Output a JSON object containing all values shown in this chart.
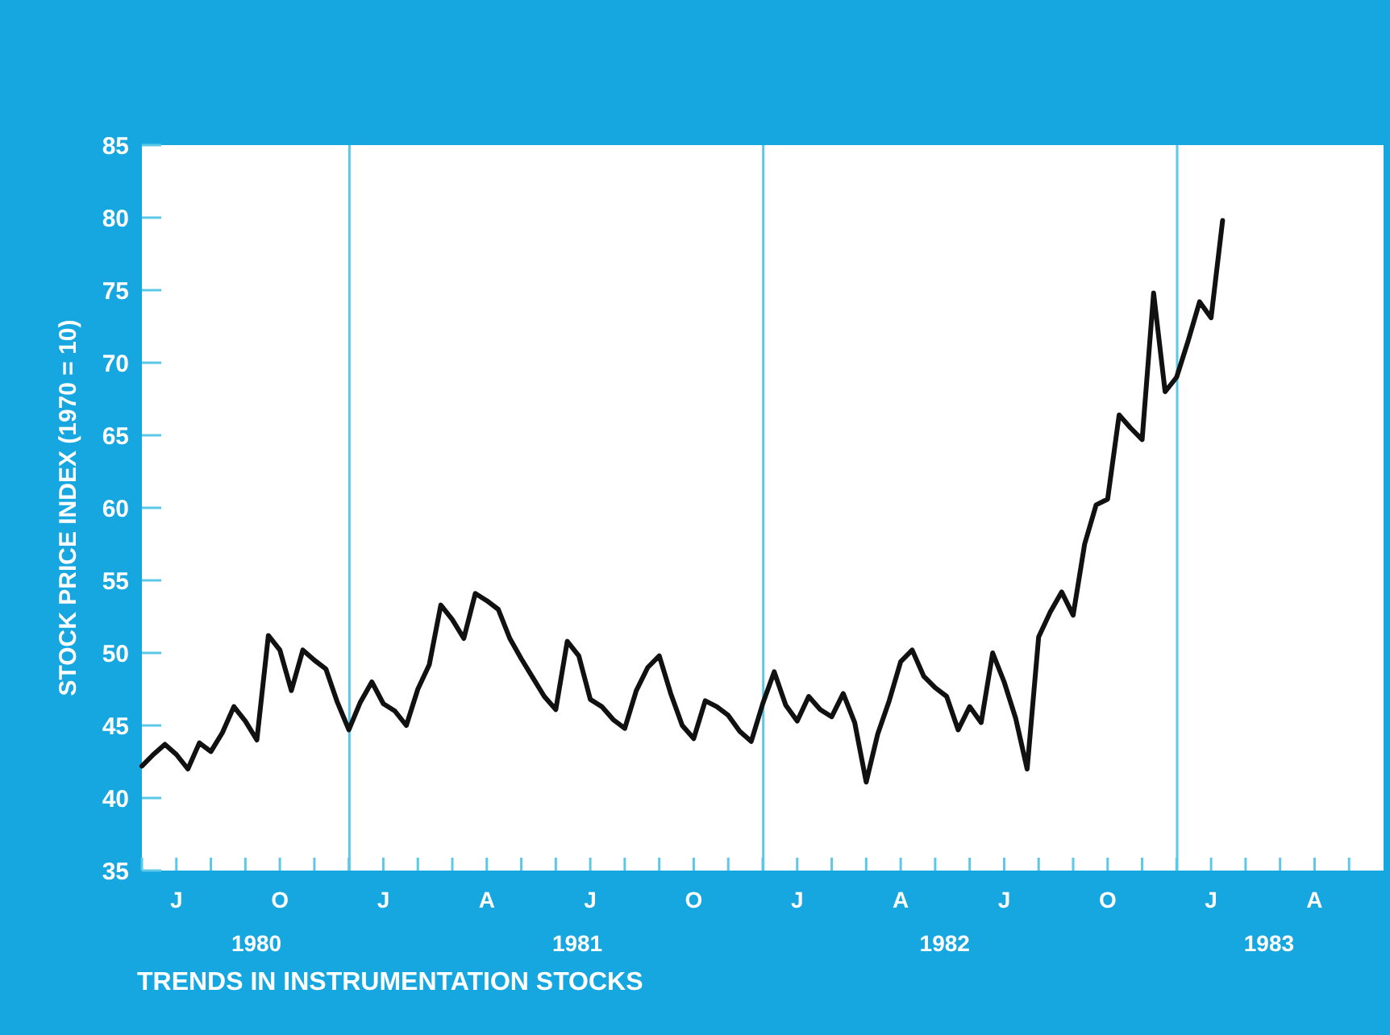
{
  "chart_data": {
    "type": "line",
    "title": "TRENDS IN INSTRUMENTATION STOCKS",
    "ylabel": "STOCK PRICE INDEX (1970 = 10)",
    "categories": [
      null,
      null,
      null,
      "J",
      null,
      null,
      null,
      null,
      null,
      null,
      null,
      null,
      "O",
      null,
      null,
      null,
      null,
      null,
      null,
      null,
      null,
      "J",
      null,
      null,
      null,
      null,
      null,
      null,
      null,
      null,
      "A",
      null,
      null,
      null,
      null,
      null,
      null,
      null,
      null,
      "J",
      null,
      null,
      null,
      null,
      null,
      null,
      null,
      null,
      "O",
      null,
      null,
      null,
      null,
      null,
      null,
      null,
      null,
      "J",
      null,
      null,
      null,
      null,
      null,
      null,
      null,
      null,
      "A",
      null,
      null,
      null,
      null,
      null,
      null,
      null,
      null,
      "J",
      null,
      null,
      null,
      null,
      null,
      null,
      null,
      null,
      "O",
      null,
      null,
      null,
      null,
      null,
      null,
      null,
      null,
      "J",
      null,
      null,
      null,
      null,
      null,
      null,
      null,
      null,
      "A",
      null,
      null,
      null,
      null,
      null
    ],
    "ylim": [
      35,
      85
    ],
    "yticks": [
      35,
      40,
      45,
      50,
      55,
      60,
      65,
      70,
      75,
      80,
      85
    ],
    "x2lim": [
      "1980-06-01",
      "1983-06-01"
    ],
    "x2ticks": [
      {
        "value": "1980-09-10",
        "label": "1980"
      },
      {
        "value": "1981-06-20",
        "label": "1981"
      },
      {
        "value": "1982-05-10",
        "label": "1982"
      },
      {
        "value": "1983-02-20",
        "label": "1983"
      }
    ],
    "ref_lines": [
      {
        "axis": "x2",
        "value": "1980-12-01",
        "color": "#5bc8e8"
      },
      {
        "axis": "x2",
        "value": "1981-12-01",
        "color": "#5bc8e8"
      },
      {
        "axis": "x2",
        "value": "1982-12-01",
        "color": "#5bc8e8"
      }
    ],
    "grid": false,
    "series": [
      {
        "color": "#111111",
        "values": [
          42.2,
          43.0,
          43.7,
          43.0,
          42.0,
          43.8,
          43.2,
          44.5,
          46.3,
          45.3,
          44.0,
          51.2,
          50.2,
          47.4,
          50.2,
          49.5,
          48.9,
          46.6,
          44.7,
          46.6,
          48.0,
          46.5,
          46.0,
          45.0,
          47.5,
          49.2,
          53.3,
          52.3,
          51.0,
          54.1,
          53.6,
          53.0,
          51.0,
          49.6,
          48.3,
          47.0,
          46.1,
          50.8,
          49.8,
          46.8,
          46.3,
          45.4,
          44.8,
          47.4,
          49.0,
          49.8,
          47.2,
          45.0,
          44.1,
          46.7,
          46.3,
          45.7,
          44.6,
          43.9,
          46.5,
          48.7,
          46.4,
          45.3,
          47.0,
          46.1,
          45.6,
          47.2,
          45.2,
          41.1,
          44.4,
          46.7,
          49.4,
          50.2,
          48.4,
          47.6,
          47.0,
          44.7,
          46.3,
          45.2,
          50.0,
          48.0,
          45.5,
          42.0,
          51.1,
          52.8,
          54.2,
          52.6,
          57.5,
          60.2,
          60.6,
          66.4,
          65.5,
          64.7,
          74.8,
          68.0,
          69.0,
          71.5,
          74.2,
          73.1,
          79.8,
          null,
          null,
          null,
          null,
          null,
          null,
          null,
          null,
          null,
          null,
          null,
          null,
          null
        ]
      }
    ]
  }
}
